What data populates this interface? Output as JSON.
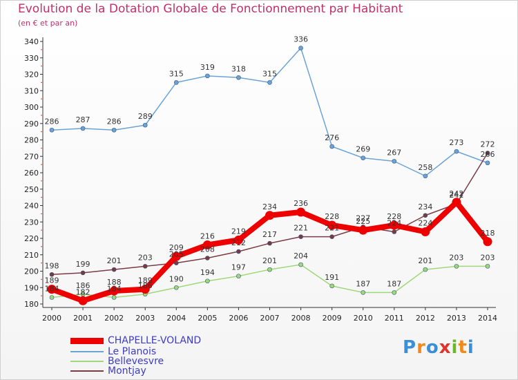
{
  "header": {
    "title": "Evolution de la Dotation Globale de Fonctionnement par Habitant",
    "subtitle": "(en € et par an)"
  },
  "logo": {
    "letters": [
      "P",
      "r",
      "o",
      "x",
      "i",
      "t",
      "i"
    ],
    "colors": [
      "#3a8fd8",
      "#f08a1c",
      "#3a8fd8",
      "#e0342c",
      "#6bb82a",
      "#f08a1c",
      "#3a8fd8"
    ]
  },
  "chart_data": {
    "type": "line",
    "title": "Evolution de la Dotation Globale de Fonctionnement par Habitant",
    "subtitle": "(en € et par an)",
    "x": [
      "2000",
      "2001",
      "2002",
      "2003",
      "2004",
      "2005",
      "2006",
      "2007",
      "2008",
      "2009",
      "2010",
      "2011",
      "2012",
      "2013",
      "2014"
    ],
    "ylim": [
      180,
      340
    ],
    "yticks": [
      180,
      190,
      200,
      210,
      220,
      230,
      240,
      250,
      260,
      270,
      280,
      290,
      300,
      310,
      320,
      330,
      340
    ],
    "grid": false,
    "legend": "bottom-left",
    "series": [
      {
        "name": "CHAPELLE-VOLAND",
        "color": "#ee0000",
        "values": [
          189,
          182,
          188,
          189,
          209,
          216,
          219,
          234,
          236,
          228,
          225,
          228,
          224,
          242,
          218
        ]
      },
      {
        "name": "Le Planois",
        "color": "#6ba3d6",
        "values": [
          286,
          287,
          286,
          289,
          315,
          319,
          318,
          315,
          336,
          276,
          269,
          267,
          258,
          273,
          266
        ]
      },
      {
        "name": "Bellevesvre",
        "color": "#9ed87a",
        "values": [
          184,
          186,
          184,
          186,
          190,
          194,
          197,
          201,
          204,
          191,
          187,
          187,
          201,
          203,
          203
        ]
      },
      {
        "name": "Montjay",
        "color": "#7a3a44",
        "values": [
          198,
          199,
          201,
          203,
          205,
          208,
          212,
          217,
          221,
          221,
          227,
          224,
          234,
          241,
          272
        ]
      }
    ]
  }
}
